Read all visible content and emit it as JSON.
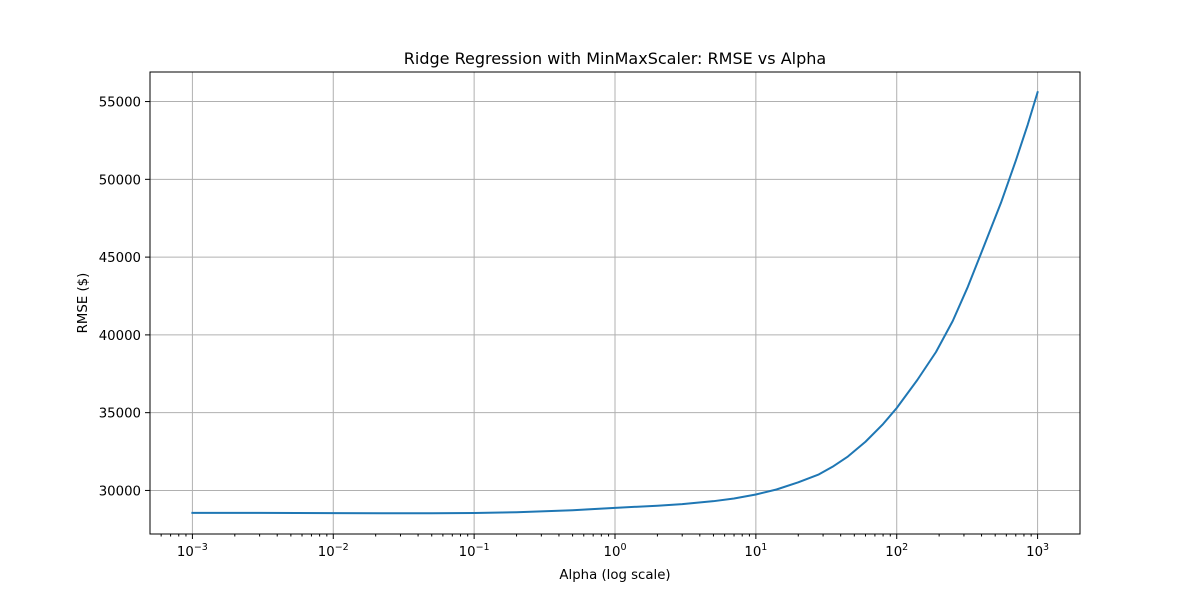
{
  "chart_data": {
    "type": "line",
    "title": "Ridge Regression with MinMaxScaler: RMSE vs Alpha",
    "xlabel": "Alpha (log scale)",
    "ylabel": "RMSE ($)",
    "x_scale": "log",
    "xlim": [
      0.0005,
      2000
    ],
    "ylim": [
      27200,
      56900
    ],
    "grid": true,
    "x_ticks": [
      {
        "value": 0.001,
        "base": "10",
        "exp": "−3"
      },
      {
        "value": 0.01,
        "base": "10",
        "exp": "−2"
      },
      {
        "value": 0.1,
        "base": "10",
        "exp": "−1"
      },
      {
        "value": 1,
        "base": "10",
        "exp": "0"
      },
      {
        "value": 10,
        "base": "10",
        "exp": "1"
      },
      {
        "value": 100,
        "base": "10",
        "exp": "2"
      },
      {
        "value": 1000,
        "base": "10",
        "exp": "3"
      }
    ],
    "y_ticks": [
      {
        "value": 30000,
        "label": "30000"
      },
      {
        "value": 35000,
        "label": "35000"
      },
      {
        "value": 40000,
        "label": "40000"
      },
      {
        "value": 45000,
        "label": "45000"
      },
      {
        "value": 50000,
        "label": "50000"
      },
      {
        "value": 55000,
        "label": "55000"
      }
    ],
    "series": [
      {
        "color": "#1f77b4",
        "x": [
          0.001,
          0.003,
          0.01,
          0.03,
          0.05,
          0.1,
          0.2,
          0.5,
          1,
          2,
          3,
          5,
          7,
          10,
          14,
          20,
          28,
          35,
          45,
          60,
          80,
          100,
          140,
          190,
          250,
          320,
          420,
          550,
          700,
          850,
          1000
        ],
        "y": [
          28560,
          28560,
          28540,
          28530,
          28530,
          28550,
          28600,
          28730,
          28880,
          29020,
          29120,
          29310,
          29480,
          29740,
          30060,
          30520,
          31030,
          31520,
          32180,
          33130,
          34270,
          35300,
          37100,
          38900,
          40900,
          43100,
          45800,
          48500,
          51200,
          53500,
          55600
        ]
      }
    ]
  }
}
